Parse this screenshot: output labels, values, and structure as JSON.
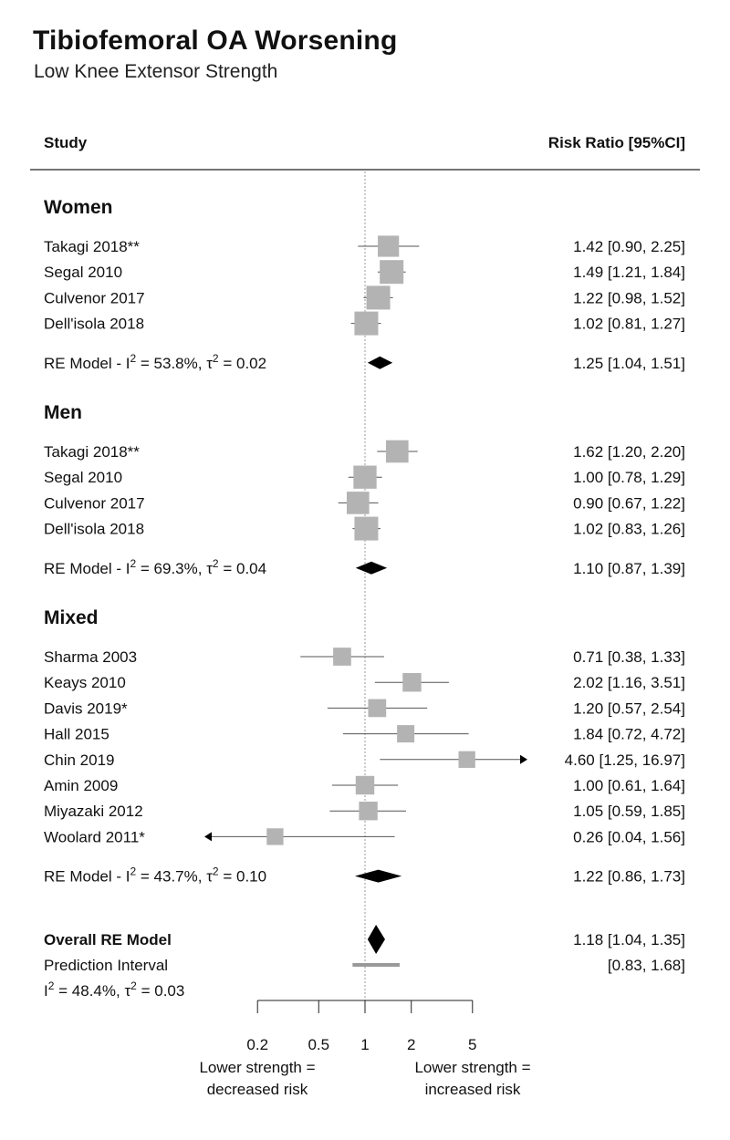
{
  "header": {
    "title": "Tibiofemoral OA Worsening",
    "subtitle": "Low Knee Extensor Strength"
  },
  "chart_data": {
    "type": "forest",
    "scale": "log",
    "reference_line": 1,
    "columns": {
      "study": "Study",
      "effect": "Risk Ratio [95%CI]"
    },
    "x_ticks": [
      0.2,
      0.5,
      1,
      2,
      5
    ],
    "x_tick_labels": [
      "0.2",
      "0.5",
      "1",
      "2",
      "5"
    ],
    "x_notes": {
      "left": [
        "Lower strength =",
        "decreased risk"
      ],
      "right": [
        "Lower strength =",
        "increased risk"
      ]
    },
    "colors": {
      "study_box": "#b3b3b3",
      "summary": "#000000",
      "prediction": "#999999",
      "ci_line": "#888888"
    },
    "groups": [
      {
        "name": "Women",
        "studies": [
          {
            "label": "Takagi 2018**",
            "rr": 1.42,
            "lo": 0.9,
            "hi": 2.25,
            "text": "1.42 [0.90,  2.25]",
            "weight": 0.8
          },
          {
            "label": "Segal 2010",
            "rr": 1.49,
            "lo": 1.21,
            "hi": 1.84,
            "text": "1.49 [1.21,  1.84]",
            "weight": 1.0
          },
          {
            "label": "Culvenor 2017",
            "rr": 1.22,
            "lo": 0.98,
            "hi": 1.52,
            "text": "1.22 [0.98,  1.52]",
            "weight": 1.0
          },
          {
            "label": "Dell'isola 2018",
            "rr": 1.02,
            "lo": 0.81,
            "hi": 1.27,
            "text": "1.02 [0.81,  1.27]",
            "weight": 1.0
          }
        ],
        "model": {
          "label": "RE Model - I² = 53.8%, τ² = 0.02",
          "rr": 1.25,
          "lo": 1.04,
          "hi": 1.51,
          "text": "1.25 [1.04, 1.51]"
        }
      },
      {
        "name": "Men",
        "studies": [
          {
            "label": "Takagi 2018**",
            "rr": 1.62,
            "lo": 1.2,
            "hi": 2.2,
            "text": "1.62 [1.20,  2.20]",
            "weight": 0.9
          },
          {
            "label": "Segal 2010",
            "rr": 1.0,
            "lo": 0.78,
            "hi": 1.29,
            "text": "1.00 [0.78,  1.29]",
            "weight": 0.95
          },
          {
            "label": "Culvenor 2017",
            "rr": 0.9,
            "lo": 0.67,
            "hi": 1.22,
            "text": "0.90 [0.67,  1.22]",
            "weight": 0.9
          },
          {
            "label": "Dell'isola 2018",
            "rr": 1.02,
            "lo": 0.83,
            "hi": 1.26,
            "text": "1.02 [0.83,  1.26]",
            "weight": 1.0
          }
        ],
        "model": {
          "label": "RE Model - I² = 69.3%, τ² = 0.04",
          "rr": 1.1,
          "lo": 0.87,
          "hi": 1.39,
          "text": "1.10 [0.87, 1.39]"
        }
      },
      {
        "name": "Mixed",
        "studies": [
          {
            "label": "Sharma 2003",
            "rr": 0.71,
            "lo": 0.38,
            "hi": 1.33,
            "text": "0.71 [0.38,  1.33]",
            "weight": 0.55
          },
          {
            "label": "Keays 2010",
            "rr": 2.02,
            "lo": 1.16,
            "hi": 3.51,
            "text": "2.02 [1.16,  3.51]",
            "weight": 0.6
          },
          {
            "label": "Davis 2019*",
            "rr": 1.2,
            "lo": 0.57,
            "hi": 2.54,
            "text": "1.20 [0.57,  2.54]",
            "weight": 0.55
          },
          {
            "label": "Hall 2015",
            "rr": 1.84,
            "lo": 0.72,
            "hi": 4.72,
            "text": "1.84 [0.72,  4.72]",
            "weight": 0.5
          },
          {
            "label": "Chin 2019",
            "rr": 4.6,
            "lo": 1.25,
            "hi": 16.97,
            "text": "4.60 [1.25, 16.97]",
            "weight": 0.45
          },
          {
            "label": "Amin 2009",
            "rr": 1.0,
            "lo": 0.61,
            "hi": 1.64,
            "text": "1.00 [0.61,  1.64]",
            "weight": 0.6
          },
          {
            "label": "Miyazaki 2012",
            "rr": 1.05,
            "lo": 0.59,
            "hi": 1.85,
            "text": "1.05 [0.59,  1.85]",
            "weight": 0.6
          },
          {
            "label": "Woolard 2011*",
            "rr": 0.26,
            "lo": 0.04,
            "hi": 1.56,
            "text": "0.26 [0.04,  1.56]",
            "weight": 0.45
          }
        ],
        "model": {
          "label": "RE Model - I² = 43.7%, τ² = 0.10",
          "rr": 1.22,
          "lo": 0.86,
          "hi": 1.73,
          "text": "1.22 [0.86, 1.73]"
        }
      }
    ],
    "overall": {
      "label": "Overall RE Model",
      "rr": 1.18,
      "lo": 1.04,
      "hi": 1.35,
      "text": "1.18 [1.04, 1.35]",
      "prediction_label": "Prediction Interval",
      "prediction_lo": 0.83,
      "prediction_hi": 1.68,
      "prediction_text": "[0.83, 1.68]",
      "heterogeneity": "I² = 48.4%, τ² = 0.03"
    }
  }
}
